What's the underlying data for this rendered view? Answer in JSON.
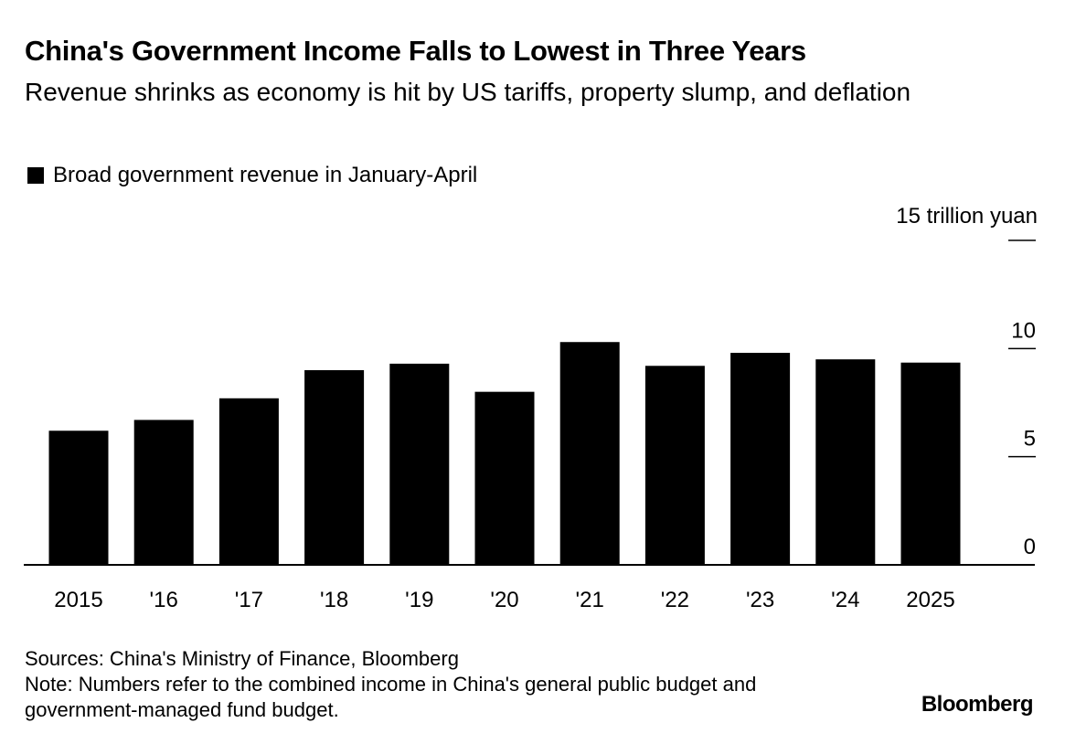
{
  "chart_data": {
    "type": "bar",
    "title": "China's Government Income Falls to Lowest in Three Years",
    "subtitle": "Revenue shrinks as economy is hit by US tariffs, property slump, and deflation",
    "legend": [
      "Broad government revenue in January-April"
    ],
    "categories": [
      "2015",
      "'16",
      "'17",
      "'18",
      "'19",
      "'20",
      "'21",
      "'22",
      "'23",
      "'24",
      "2025"
    ],
    "values": [
      6.2,
      6.7,
      7.7,
      9.0,
      9.3,
      8.0,
      10.3,
      9.2,
      9.8,
      9.5,
      9.35
    ],
    "ylim": [
      0,
      15
    ],
    "yticks": [
      0,
      5,
      10,
      15
    ],
    "ytick_labels": [
      "0",
      "5",
      "10",
      "15 trillion yuan"
    ],
    "xlabel": "",
    "ylabel": "trillion yuan",
    "color": "#000000"
  },
  "footer": {
    "sources": "Sources: China's Ministry of Finance, Bloomberg",
    "note": "Note: Numbers refer to the combined income in China's general public budget and government-managed fund budget.",
    "brand": "Bloomberg"
  }
}
